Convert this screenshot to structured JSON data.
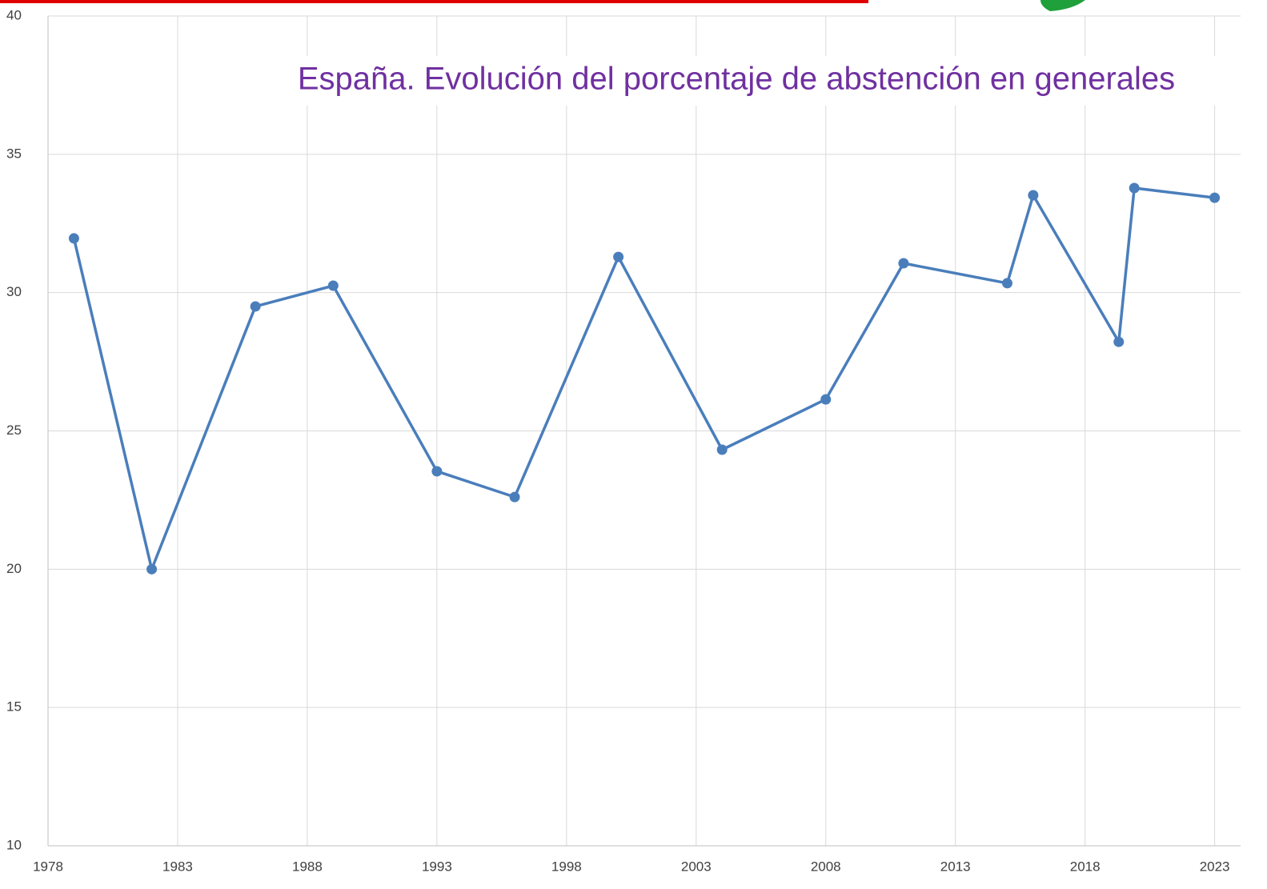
{
  "chart_data": {
    "type": "line",
    "title": "España. Evolución del porcentaje de abstención en generales",
    "x": [
      1979,
      1982,
      1986,
      1989,
      1993,
      1996,
      2000,
      2004,
      2008,
      2011,
      2015,
      2016,
      2019.3,
      2019.9,
      2023
    ],
    "series": [
      {
        "color": "#4a7ebb",
        "values": [
          31.96,
          20.0,
          29.5,
          30.25,
          23.54,
          22.61,
          31.29,
          24.32,
          26.14,
          31.06,
          30.34,
          33.52,
          28.22,
          33.78,
          33.43
        ]
      }
    ],
    "xlim": [
      1978,
      2024
    ],
    "xticks": [
      1978,
      1983,
      1988,
      1993,
      1998,
      2003,
      2008,
      2013,
      2018,
      2023
    ],
    "ylim": [
      10,
      40
    ],
    "yticks": [
      10,
      15,
      20,
      25,
      30,
      35,
      40
    ],
    "grid": true
  }
}
